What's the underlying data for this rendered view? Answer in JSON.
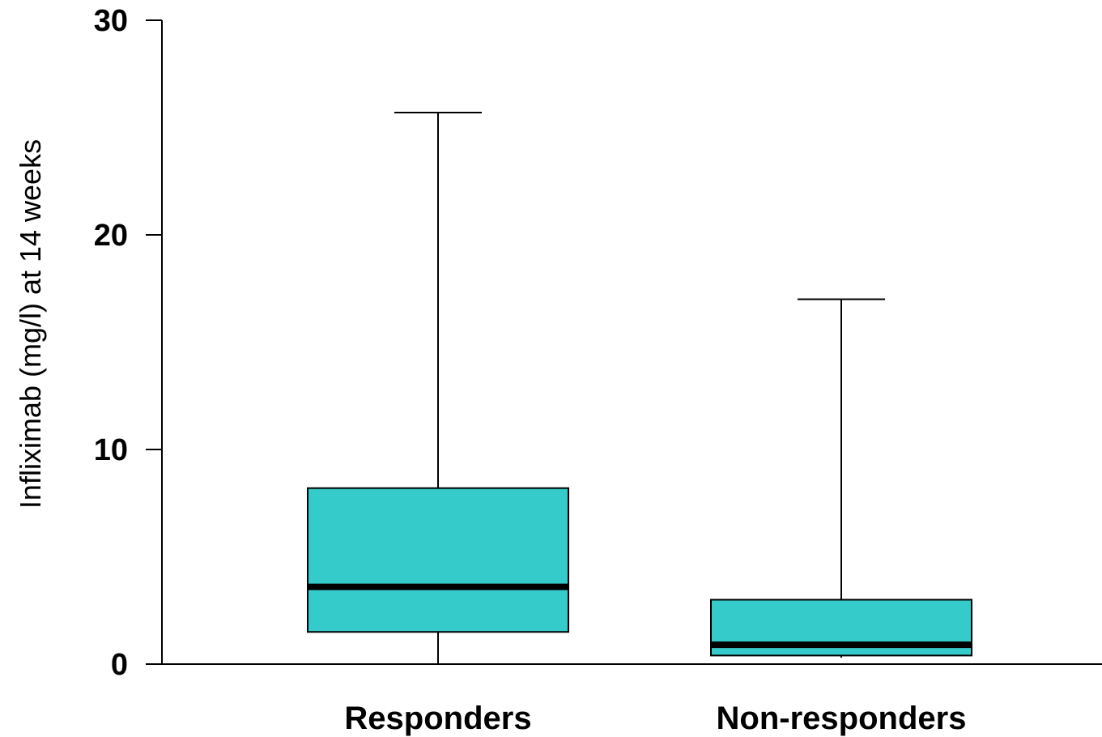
{
  "chart_data": {
    "type": "box",
    "title": "",
    "xlabel": "",
    "ylabel": "Infliximab (mg/l) at 14 weeks",
    "ylim": [
      0,
      30
    ],
    "yticks": [
      "0",
      "10",
      "20",
      "30"
    ],
    "grid": false,
    "categories": [
      "Responders",
      "Non-responders"
    ],
    "boxes": [
      {
        "category": "Responders",
        "min": 0,
        "q1": 1.5,
        "median": 3.6,
        "q3": 8.2,
        "max": 25.7
      },
      {
        "category": "Non-responders",
        "min": 0.3,
        "q1": 0.4,
        "median": 0.9,
        "q3": 3.0,
        "max": 17.0
      }
    ],
    "colors": {
      "box_fill": "#36cbcb",
      "median": "#000000",
      "stroke": "#000000"
    }
  }
}
